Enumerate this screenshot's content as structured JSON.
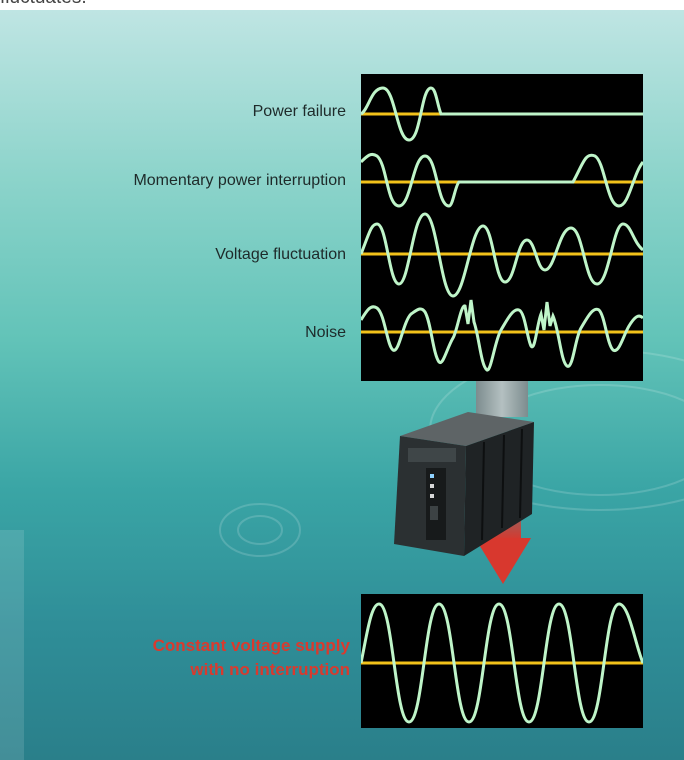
{
  "header": {
    "text": "fluctuates."
  },
  "disturbances": [
    {
      "label": "Power failure"
    },
    {
      "label": "Momentary power interruption"
    },
    {
      "label": "Voltage fluctuation"
    },
    {
      "label": "Noise"
    }
  ],
  "result": {
    "line1": "Constant voltage supply",
    "line2": "with no interruption"
  },
  "colors": {
    "baseline": "#f2c21a",
    "waveform": "#bff5c9",
    "scope_background": "#000000",
    "arrow": "#d8382e",
    "result_text": "#d93a2e"
  },
  "icons": {
    "device": "ups-unit-icon"
  }
}
